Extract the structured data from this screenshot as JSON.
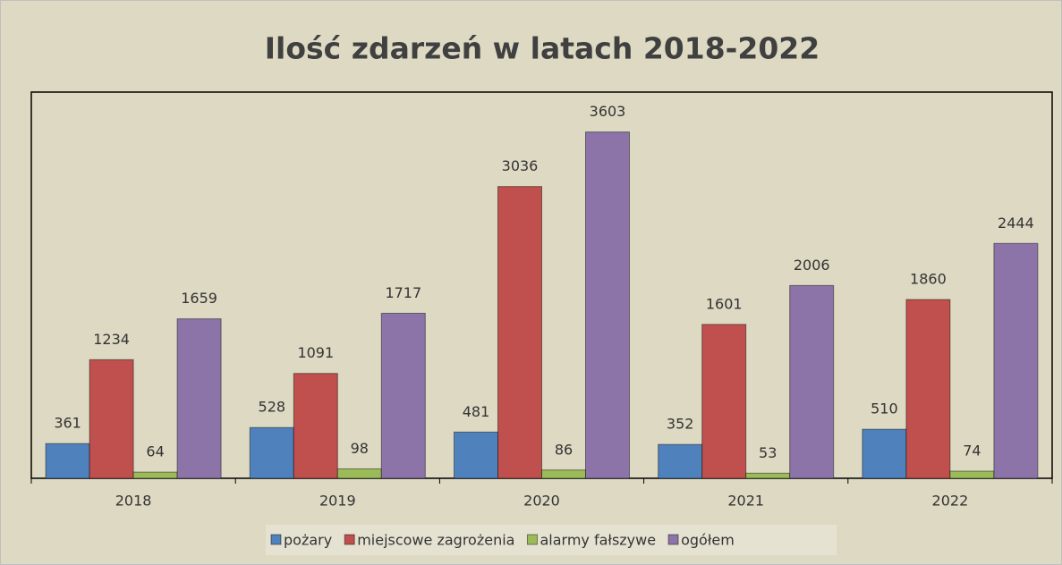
{
  "chart_data": {
    "type": "bar",
    "title": "Ilość zdarzeń w latach 2018-2022",
    "categories": [
      "2018",
      "2019",
      "2020",
      "2021",
      "2022"
    ],
    "series": [
      {
        "name": "pożary",
        "color": "#4f81bd",
        "values": [
          361,
          528,
          481,
          352,
          510
        ]
      },
      {
        "name": "miejscowe zagrożenia",
        "color": "#c0504d",
        "values": [
          1234,
          1091,
          3036,
          1601,
          1860
        ]
      },
      {
        "name": "alarmy fałszywe",
        "color": "#9bbb59",
        "values": [
          64,
          98,
          86,
          53,
          74
        ]
      },
      {
        "name": "ogółem",
        "color": "#8c74a8",
        "values": [
          1659,
          1717,
          3603,
          2006,
          2444
        ]
      }
    ],
    "ylim": [
      0,
      4000
    ],
    "legend": "bottom"
  }
}
